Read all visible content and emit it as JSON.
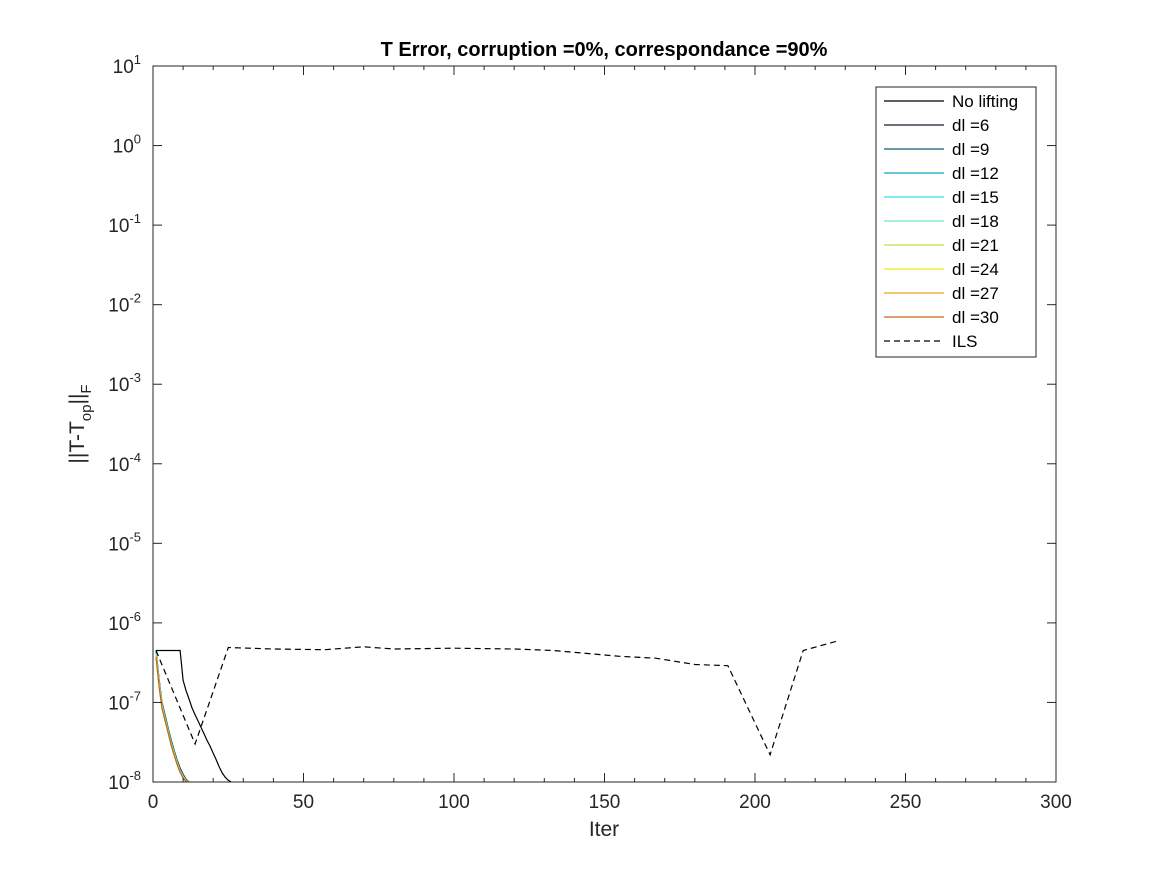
{
  "chart_data": {
    "type": "line",
    "title": "T Error, corruption =0%, correspondance =90%",
    "xlabel": "Iter",
    "ylabel": "||T-T",
    "ylabel_sub1": "op",
    "ylabel_mid": "||",
    "ylabel_sub2": "F",
    "xscale": "linear",
    "yscale": "log",
    "xlim": [
      0,
      300
    ],
    "ylim": [
      1e-08,
      10
    ],
    "grid": false,
    "box": true,
    "legend_position": "top-right",
    "x_ticks": [
      0,
      50,
      100,
      150,
      200,
      250,
      300
    ],
    "y_ticks": [
      {
        "base": "10",
        "exp": "1",
        "value": 10
      },
      {
        "base": "10",
        "exp": "0",
        "value": 1
      },
      {
        "base": "10",
        "exp": "-1",
        "value": 0.1
      },
      {
        "base": "10",
        "exp": "-2",
        "value": 0.01
      },
      {
        "base": "10",
        "exp": "-3",
        "value": 0.001
      },
      {
        "base": "10",
        "exp": "-4",
        "value": 0.0001
      },
      {
        "base": "10",
        "exp": "-5",
        "value": 1e-05
      },
      {
        "base": "10",
        "exp": "-6",
        "value": 1e-06
      },
      {
        "base": "10",
        "exp": "-7",
        "value": 1e-07
      },
      {
        "base": "10",
        "exp": "-8",
        "value": 1e-08
      }
    ],
    "series": [
      {
        "name": "No lifting",
        "color": "#000000",
        "dash": false,
        "x": [
          1,
          2,
          3,
          4,
          5,
          6,
          7,
          8,
          9,
          10,
          11,
          12,
          13,
          14,
          15,
          16,
          17,
          18,
          19,
          20,
          21,
          22,
          23,
          24,
          25,
          26
        ],
        "y": [
          4.5e-07,
          4.5e-07,
          4.5e-07,
          4.5e-07,
          4.5e-07,
          4.5e-07,
          4.5e-07,
          4.5e-07,
          4.5e-07,
          1.9e-07,
          1.4e-07,
          1.1e-07,
          8.5e-08,
          7e-08,
          5.8e-08,
          4.8e-08,
          4e-08,
          3.3e-08,
          2.8e-08,
          2.3e-08,
          1.9e-08,
          1.55e-08,
          1.3e-08,
          1.15e-08,
          1.05e-08,
          1e-08
        ]
      },
      {
        "name": "dl =6",
        "color": "#1a1a2e",
        "dash": false,
        "x": [
          1,
          2,
          3,
          4,
          5,
          6,
          7,
          8,
          9,
          10,
          11,
          12
        ],
        "y": [
          4.5e-07,
          2e-07,
          1e-07,
          7e-08,
          4.8e-08,
          3.4e-08,
          2.5e-08,
          1.9e-08,
          1.5e-08,
          1.25e-08,
          1.08e-08,
          1e-08
        ]
      },
      {
        "name": "dl =9",
        "color": "#0e5f6a",
        "dash": false,
        "x": [
          1,
          2,
          3,
          4,
          5,
          6,
          7,
          8,
          9,
          10,
          11,
          12
        ],
        "y": [
          4.4e-07,
          1.95e-07,
          9.8e-08,
          6.8e-08,
          4.7e-08,
          3.3e-08,
          2.45e-08,
          1.85e-08,
          1.45e-08,
          1.22e-08,
          1.06e-08,
          1e-08
        ]
      },
      {
        "name": "dl =12",
        "color": "#0aa7c4",
        "dash": false,
        "x": [
          1,
          2,
          3,
          4,
          5,
          6,
          7,
          8,
          9,
          10,
          11,
          12
        ],
        "y": [
          4.3e-07,
          1.9e-07,
          9.6e-08,
          6.6e-08,
          4.6e-08,
          3.2e-08,
          2.4e-08,
          1.8e-08,
          1.42e-08,
          1.2e-08,
          1.05e-08,
          1e-08
        ]
      },
      {
        "name": "dl =15",
        "color": "#33dfe8",
        "dash": false,
        "x": [
          1,
          2,
          3,
          4,
          5,
          6,
          7,
          8,
          9,
          10,
          11,
          12
        ],
        "y": [
          4.2e-07,
          1.85e-07,
          9.4e-08,
          6.4e-08,
          4.5e-08,
          3.15e-08,
          2.35e-08,
          1.78e-08,
          1.4e-08,
          1.18e-08,
          1.04e-08,
          1e-08
        ]
      },
      {
        "name": "dl =18",
        "color": "#6fe8c0",
        "dash": false,
        "x": [
          1,
          2,
          3,
          4,
          5,
          6,
          7,
          8,
          9,
          10,
          11,
          12
        ],
        "y": [
          4.1e-07,
          1.8e-07,
          9.2e-08,
          6.3e-08,
          4.4e-08,
          3.1e-08,
          2.3e-08,
          1.75e-08,
          1.38e-08,
          1.16e-08,
          1.03e-08,
          1e-08
        ]
      },
      {
        "name": "dl =21",
        "color": "#b5e84a",
        "dash": false,
        "x": [
          1,
          2,
          3,
          4,
          5,
          6,
          7,
          8,
          9,
          10,
          11,
          12
        ],
        "y": [
          4e-07,
          1.75e-07,
          9e-08,
          6.2e-08,
          4.3e-08,
          3.05e-08,
          2.28e-08,
          1.72e-08,
          1.36e-08,
          1.15e-08,
          1.03e-08,
          1e-08
        ]
      },
      {
        "name": "dl =24",
        "color": "#f5e80f",
        "dash": false,
        "x": [
          1,
          2,
          3,
          4,
          5,
          6,
          7,
          8,
          9,
          10,
          11,
          12
        ],
        "y": [
          3.9e-07,
          1.7e-07,
          8.8e-08,
          6.1e-08,
          4.25e-08,
          3e-08,
          2.25e-08,
          1.7e-08,
          1.35e-08,
          1.14e-08,
          1.02e-08,
          1e-08
        ]
      },
      {
        "name": "dl =27",
        "color": "#e8a818",
        "dash": false,
        "x": [
          1,
          2,
          3,
          4,
          5,
          6,
          7,
          8,
          9,
          10,
          11,
          12
        ],
        "y": [
          3.8e-07,
          1.65e-07,
          8.6e-08,
          6e-08,
          4.2e-08,
          2.95e-08,
          2.2e-08,
          1.68e-08,
          1.33e-08,
          1.13e-08,
          1.02e-08,
          1e-08
        ]
      },
      {
        "name": "dl =30",
        "color": "#c9651c",
        "dash": false,
        "x": [
          1,
          2,
          3,
          4,
          5,
          6,
          7,
          8,
          9,
          10,
          11,
          12
        ],
        "y": [
          3.7e-07,
          1.6e-07,
          8.4e-08,
          5.9e-08,
          4.15e-08,
          2.9e-08,
          2.18e-08,
          1.66e-08,
          1.32e-08,
          1.12e-08,
          1.01e-08,
          1e-08
        ]
      },
      {
        "name": "ILS",
        "color": "#000000",
        "dash": true,
        "x": [
          1,
          14,
          25,
          40,
          57,
          70,
          80,
          100,
          120,
          133,
          155,
          167,
          180,
          191,
          205,
          216,
          228
        ],
        "y": [
          4.5e-07,
          3e-08,
          4.9e-07,
          4.7e-07,
          4.6e-07,
          5e-07,
          4.7e-07,
          4.8e-07,
          4.7e-07,
          4.5e-07,
          3.8e-07,
          3.6e-07,
          3e-07,
          2.9e-07,
          2.2e-08,
          4.5e-07,
          6e-07
        ]
      }
    ]
  }
}
